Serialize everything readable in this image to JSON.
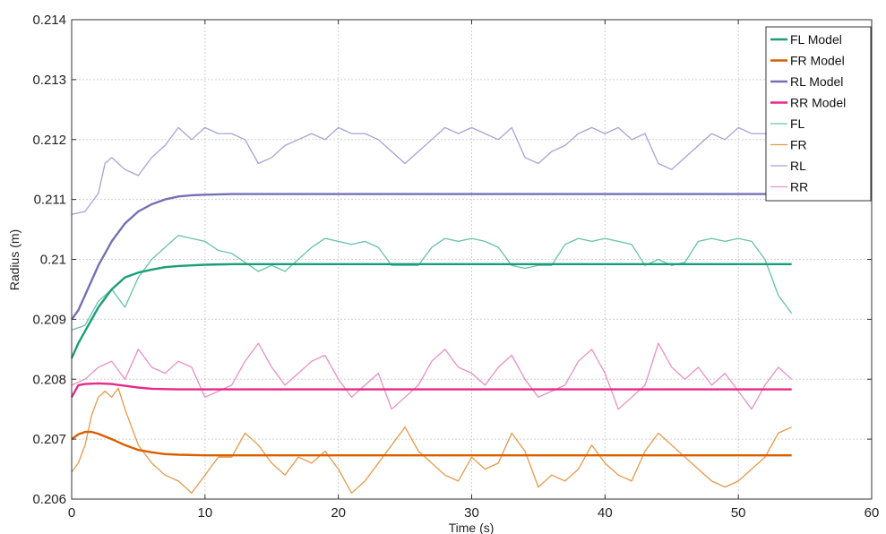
{
  "chart_data": {
    "type": "line",
    "title": "",
    "xlabel": "Time (s)",
    "ylabel": "Radius (m)",
    "xlim": [
      0,
      60
    ],
    "ylim": [
      0.206,
      0.214
    ],
    "xticks": [
      0,
      10,
      20,
      30,
      40,
      50,
      60
    ],
    "xtick_labels": [
      "0",
      "10",
      "20",
      "30",
      "40",
      "50",
      "60"
    ],
    "yticks": [
      0.206,
      0.207,
      0.208,
      0.209,
      0.21,
      0.211,
      0.212,
      0.213,
      0.214
    ],
    "ytick_labels": [
      "0.206",
      "0.207",
      "0.208",
      "0.209",
      "0.21",
      "0.211",
      "0.212",
      "0.213",
      "0.214"
    ],
    "grid": true,
    "legend_position": "top-right",
    "series": [
      {
        "name": "FL Model",
        "color": "#1a9e77",
        "width": 2.4,
        "x": [
          0,
          0.5,
          1,
          2,
          3,
          4,
          5,
          6,
          7,
          8,
          9,
          10,
          12,
          14,
          54
        ],
        "y": [
          0.20835,
          0.2086,
          0.2088,
          0.2092,
          0.2095,
          0.2097,
          0.20978,
          0.20983,
          0.20987,
          0.20989,
          0.2099,
          0.20991,
          0.20992,
          0.20992,
          0.20992
        ]
      },
      {
        "name": "FR Model",
        "color": "#d95f02",
        "width": 2.4,
        "x": [
          0,
          0.5,
          1,
          1.5,
          2,
          3,
          4,
          5,
          6,
          7,
          8,
          10,
          12,
          54
        ],
        "y": [
          0.207,
          0.20708,
          0.20712,
          0.20712,
          0.20709,
          0.207,
          0.2069,
          0.20682,
          0.20678,
          0.20675,
          0.20674,
          0.20673,
          0.20673,
          0.20673
        ]
      },
      {
        "name": "RL Model",
        "color": "#7570b3",
        "width": 2.4,
        "x": [
          0,
          0.5,
          1,
          2,
          3,
          4,
          5,
          6,
          7,
          8,
          9,
          10,
          12,
          14,
          54
        ],
        "y": [
          0.209,
          0.20915,
          0.2094,
          0.2099,
          0.2103,
          0.2106,
          0.2108,
          0.21092,
          0.211,
          0.21105,
          0.21107,
          0.21108,
          0.21109,
          0.21109,
          0.21109
        ]
      },
      {
        "name": "RR Model",
        "color": "#e7298a",
        "width": 2.4,
        "x": [
          0,
          0.5,
          1,
          2,
          3,
          4,
          5,
          6,
          8,
          10,
          54
        ],
        "y": [
          0.2077,
          0.2079,
          0.20792,
          0.20793,
          0.20792,
          0.20789,
          0.20786,
          0.20784,
          0.20783,
          0.20783,
          0.20783
        ]
      },
      {
        "name": "FL",
        "color": "#66c2a5",
        "width": 1.3,
        "x": [
          0,
          1,
          2,
          3,
          4,
          5,
          6,
          7,
          8,
          9,
          10,
          11,
          12,
          13,
          14,
          15,
          16,
          17,
          18,
          19,
          20,
          21,
          22,
          23,
          24,
          25,
          26,
          27,
          28,
          29,
          30,
          31,
          32,
          33,
          34,
          35,
          36,
          37,
          38,
          39,
          40,
          41,
          42,
          43,
          44,
          45,
          46,
          47,
          48,
          49,
          50,
          51,
          52,
          53,
          54
        ],
        "y": [
          0.20882,
          0.2089,
          0.2093,
          0.2095,
          0.2092,
          0.2097,
          0.21,
          0.2102,
          0.2104,
          0.21035,
          0.2103,
          0.21015,
          0.2101,
          0.20995,
          0.2098,
          0.2099,
          0.2098,
          0.21,
          0.2102,
          0.21035,
          0.2103,
          0.21025,
          0.2103,
          0.2102,
          0.2099,
          0.2099,
          0.2099,
          0.2102,
          0.21035,
          0.2103,
          0.21035,
          0.2103,
          0.2102,
          0.2099,
          0.20985,
          0.2099,
          0.2099,
          0.21025,
          0.21035,
          0.2103,
          0.21035,
          0.2103,
          0.21025,
          0.2099,
          0.21,
          0.2099,
          0.20995,
          0.2103,
          0.21035,
          0.2103,
          0.21035,
          0.2103,
          0.21,
          0.2094,
          0.2091
        ]
      },
      {
        "name": "FR",
        "color": "#e6994a",
        "width": 1.3,
        "x": [
          0,
          0.5,
          1,
          1.5,
          2,
          2.5,
          3,
          3.5,
          4,
          5,
          6,
          7,
          8,
          9,
          10,
          11,
          12,
          13,
          14,
          15,
          16,
          17,
          18,
          19,
          20,
          21,
          22,
          23,
          24,
          25,
          26,
          27,
          28,
          29,
          30,
          31,
          32,
          33,
          34,
          35,
          36,
          37,
          38,
          39,
          40,
          41,
          42,
          43,
          44,
          45,
          46,
          47,
          48,
          49,
          50,
          51,
          52,
          53,
          54
        ],
        "y": [
          0.20645,
          0.2066,
          0.2069,
          0.2074,
          0.2077,
          0.2078,
          0.2077,
          0.20785,
          0.2075,
          0.2069,
          0.2066,
          0.2064,
          0.2063,
          0.2061,
          0.2064,
          0.2067,
          0.2067,
          0.2071,
          0.2069,
          0.2066,
          0.2064,
          0.2067,
          0.2066,
          0.2068,
          0.2065,
          0.2061,
          0.2063,
          0.2066,
          0.2069,
          0.2072,
          0.2068,
          0.2066,
          0.2064,
          0.2063,
          0.2067,
          0.2065,
          0.2066,
          0.2071,
          0.2068,
          0.2062,
          0.2064,
          0.2063,
          0.2065,
          0.2069,
          0.2066,
          0.2064,
          0.2063,
          0.2068,
          0.2071,
          0.2069,
          0.2067,
          0.2065,
          0.2063,
          0.2062,
          0.2063,
          0.2065,
          0.2067,
          0.2071,
          0.2072
        ]
      },
      {
        "name": "RL",
        "color": "#a6a2d8",
        "width": 1.3,
        "x": [
          0,
          1,
          2,
          2.5,
          3,
          4,
          5,
          6,
          7,
          8,
          9,
          10,
          11,
          12,
          13,
          14,
          15,
          16,
          17,
          18,
          19,
          20,
          21,
          22,
          23,
          24,
          25,
          26,
          27,
          28,
          29,
          30,
          31,
          32,
          33,
          34,
          35,
          36,
          37,
          38,
          39,
          40,
          41,
          42,
          43,
          44,
          45,
          46,
          47,
          48,
          49,
          50,
          51,
          52,
          53,
          54
        ],
        "y": [
          0.21075,
          0.2108,
          0.2111,
          0.2116,
          0.2117,
          0.2115,
          0.2114,
          0.2117,
          0.2119,
          0.2122,
          0.212,
          0.2122,
          0.2121,
          0.2121,
          0.212,
          0.2116,
          0.2117,
          0.2119,
          0.212,
          0.2121,
          0.212,
          0.2122,
          0.2121,
          0.2121,
          0.212,
          0.2118,
          0.2116,
          0.2118,
          0.212,
          0.2122,
          0.2121,
          0.2122,
          0.2121,
          0.212,
          0.2122,
          0.2117,
          0.2116,
          0.2118,
          0.2119,
          0.2121,
          0.2122,
          0.2121,
          0.2122,
          0.212,
          0.2121,
          0.2116,
          0.2115,
          0.2117,
          0.2119,
          0.2121,
          0.212,
          0.2122,
          0.2121,
          0.2121,
          0.212,
          0.2121
        ]
      },
      {
        "name": "RR",
        "color": "#e88fc6",
        "width": 1.3,
        "x": [
          0,
          1,
          2,
          3,
          4,
          5,
          6,
          7,
          8,
          9,
          10,
          11,
          12,
          13,
          14,
          15,
          16,
          17,
          18,
          19,
          20,
          21,
          22,
          23,
          24,
          25,
          26,
          27,
          28,
          29,
          30,
          31,
          32,
          33,
          34,
          35,
          36,
          37,
          38,
          39,
          40,
          41,
          42,
          43,
          44,
          45,
          46,
          47,
          48,
          49,
          50,
          51,
          52,
          53,
          54
        ],
        "y": [
          0.2079,
          0.208,
          0.2082,
          0.2083,
          0.208,
          0.2085,
          0.2082,
          0.2081,
          0.2083,
          0.2082,
          0.2077,
          0.2078,
          0.2079,
          0.2083,
          0.2086,
          0.2082,
          0.2079,
          0.2081,
          0.2083,
          0.2084,
          0.208,
          0.2077,
          0.2079,
          0.2081,
          0.2075,
          0.2077,
          0.2079,
          0.2083,
          0.2085,
          0.2082,
          0.2081,
          0.2079,
          0.2082,
          0.2084,
          0.208,
          0.2077,
          0.2078,
          0.2079,
          0.2083,
          0.2085,
          0.2081,
          0.2075,
          0.2077,
          0.2079,
          0.2086,
          0.2082,
          0.208,
          0.2082,
          0.2079,
          0.2081,
          0.2078,
          0.2075,
          0.2079,
          0.2082,
          0.208
        ]
      }
    ]
  }
}
